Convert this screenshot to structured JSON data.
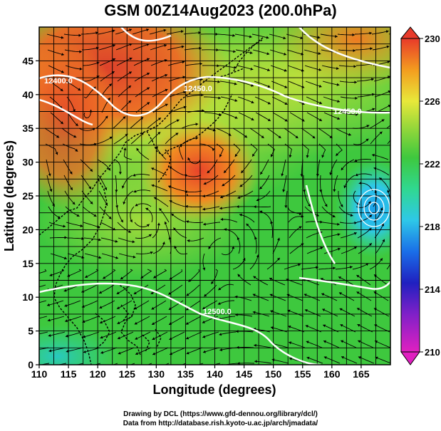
{
  "title": "GSM 00Z14Aug2023 (200.0hPa)",
  "axes": {
    "xlabel": "Longitude (degrees)",
    "ylabel": "Latitude  (degrees)",
    "x_ticks": [
      "110",
      "115",
      "120",
      "125",
      "130",
      "135",
      "140",
      "145",
      "150",
      "155",
      "160",
      "165"
    ],
    "y_ticks": [
      "0",
      "5",
      "10",
      "15",
      "20",
      "25",
      "30",
      "35",
      "40",
      "45"
    ],
    "xlim": [
      110,
      170
    ],
    "ylim": [
      0,
      50
    ]
  },
  "colorbar": {
    "labels": [
      "230",
      "226",
      "222",
      "218",
      "214",
      "210"
    ],
    "range": [
      210,
      230
    ]
  },
  "contour_labels": [
    "12400.0",
    "12450.0",
    "12450.0",
    "12500.0"
  ],
  "credits": {
    "line1": "Drawing by DCL (https://www.gfd-dennou.org/library/dcl/)",
    "line2": "Data from http://database.rish.kyoto-u.ac.jp/arch/jmadata/"
  },
  "colors": {
    "warm": "#e83a2a",
    "orange": "#f39c1f",
    "yellow": "#e8e83a",
    "green": "#3ec83e",
    "cyan": "#2ec8e8",
    "blue": "#2020c0",
    "magenta": "#e020c0"
  }
}
